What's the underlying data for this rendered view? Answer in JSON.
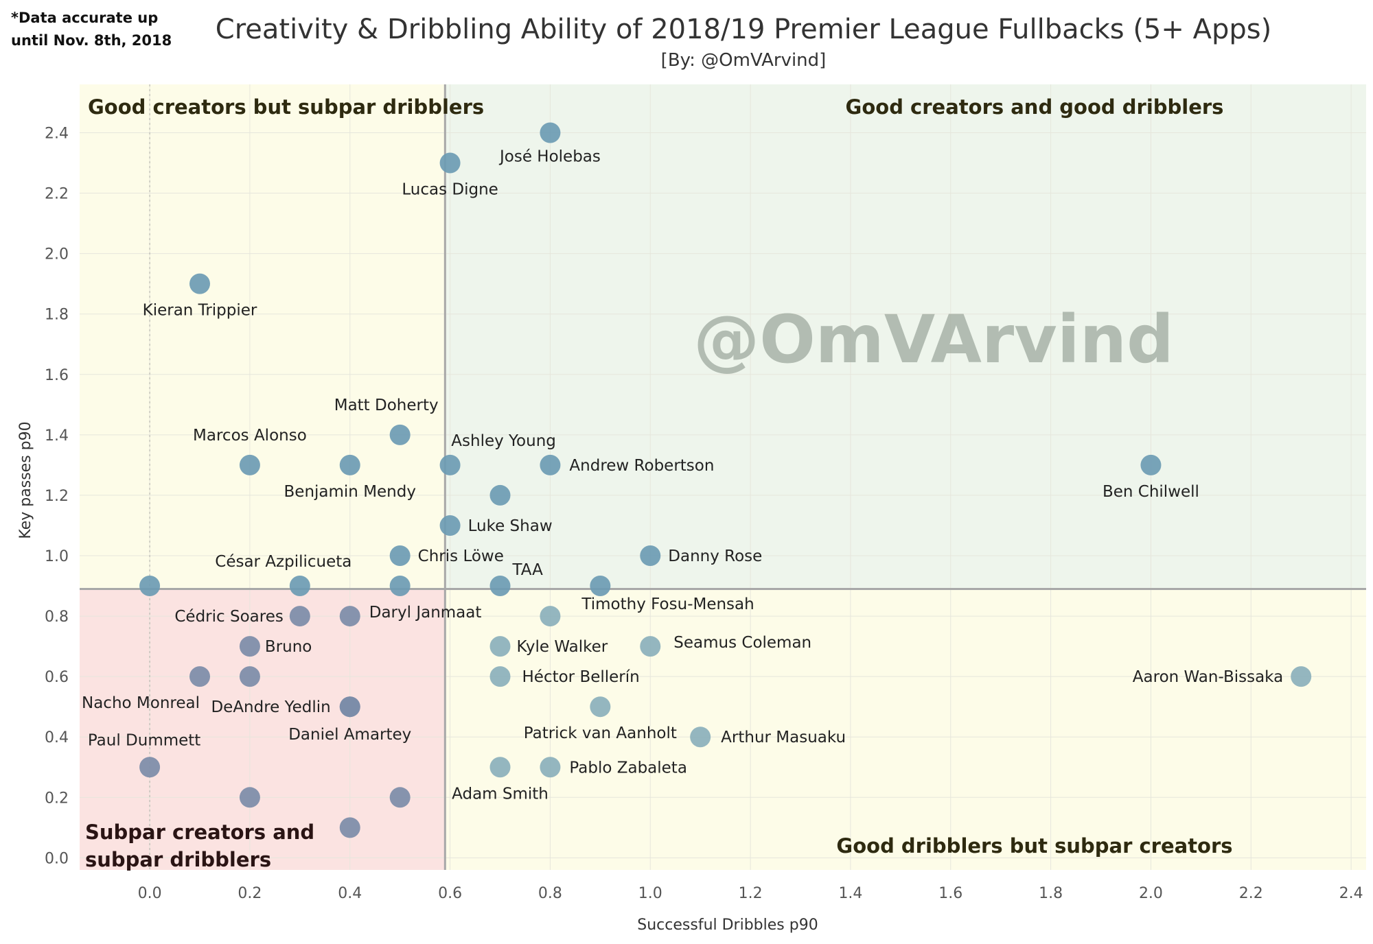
{
  "note": "*Data accurate up\nuntil Nov. 8th, 2018",
  "watermark": "@OmVArvind",
  "chart_data": {
    "type": "scatter",
    "title": "Creativity & Dribbling Ability of 2018/19 Premier League Fullbacks (5+ Apps)",
    "subtitle": "[By: @OmVArvind]",
    "xlabel": "Successful Dribbles p90",
    "ylabel": "Key passes p90",
    "xlim": [
      -0.14,
      2.43
    ],
    "ylim": [
      -0.04,
      2.56
    ],
    "xticks": [
      "0.0",
      "0.2",
      "0.4",
      "0.6",
      "0.8",
      "1.0",
      "1.2",
      "1.4",
      "1.6",
      "1.8",
      "2.0",
      "2.2",
      "2.4"
    ],
    "yticks": [
      "0.0",
      "0.2",
      "0.4",
      "0.6",
      "0.8",
      "1.0",
      "1.2",
      "1.4",
      "1.6",
      "1.8",
      "2.0",
      "2.2",
      "2.4"
    ],
    "grid": true,
    "reference_lines": {
      "x": 0.59,
      "y": 0.89
    },
    "quadrants": {
      "top_left": "Good creators but subpar dribblers",
      "top_right": "Good creators and good dribblers",
      "bottom_left": "Subpar creators and subpar dribblers",
      "bottom_right": "Good dribblers but subpar creators"
    },
    "colors": {
      "top_left_bg": "#fdfce8",
      "top_right_bg": "#eef5ec",
      "bottom_left_bg": "#fbe3e1",
      "bottom_right_bg": "#fdfce8",
      "point_creator": "#6d9bb3",
      "point_dribbler": "#8bb0bb",
      "point_subpar": "#7c8ca8",
      "divider": "#a8a8a8"
    },
    "points": [
      {
        "name": "José Holebas",
        "x": 0.8,
        "y": 2.4
      },
      {
        "name": "Lucas Digne",
        "x": 0.6,
        "y": 2.3
      },
      {
        "name": "Kieran Trippier",
        "x": 0.1,
        "y": 1.9
      },
      {
        "name": "Matt Doherty",
        "x": 0.5,
        "y": 1.4
      },
      {
        "name": "Marcos Alonso",
        "x": 0.2,
        "y": 1.3
      },
      {
        "name": "Benjamin Mendy",
        "x": 0.4,
        "y": 1.3
      },
      {
        "name": "Ashley Young",
        "x": 0.6,
        "y": 1.3
      },
      {
        "name": "Andrew Robertson",
        "x": 0.8,
        "y": 1.3
      },
      {
        "name": "Ben Chilwell",
        "x": 2.0,
        "y": 1.3
      },
      {
        "name": "",
        "x": 0.7,
        "y": 1.2
      },
      {
        "name": "Luke Shaw",
        "x": 0.6,
        "y": 1.1
      },
      {
        "name": "Chris Löwe",
        "x": 0.5,
        "y": 1.0
      },
      {
        "name": "Danny Rose",
        "x": 1.0,
        "y": 1.0
      },
      {
        "name": "",
        "x": 0.0,
        "y": 0.9
      },
      {
        "name": "César Azpilicueta",
        "x": 0.3,
        "y": 0.9
      },
      {
        "name": "",
        "x": 0.5,
        "y": 0.9
      },
      {
        "name": "TAA",
        "x": 0.7,
        "y": 0.9
      },
      {
        "name": "",
        "x": 0.9,
        "y": 0.9
      },
      {
        "name": "Cédric Soares",
        "x": 0.3,
        "y": 0.8
      },
      {
        "name": "Daryl Janmaat",
        "x": 0.4,
        "y": 0.8
      },
      {
        "name": "Timothy Fosu-Mensah",
        "x": 0.8,
        "y": 0.8
      },
      {
        "name": "Bruno",
        "x": 0.2,
        "y": 0.7
      },
      {
        "name": "Kyle Walker",
        "x": 0.7,
        "y": 0.7
      },
      {
        "name": "Seamus Coleman",
        "x": 1.0,
        "y": 0.7
      },
      {
        "name": "Nacho Monreal",
        "x": 0.1,
        "y": 0.6
      },
      {
        "name": "",
        "x": 0.2,
        "y": 0.6
      },
      {
        "name": "Héctor Bellerín",
        "x": 0.7,
        "y": 0.6
      },
      {
        "name": "Aaron Wan-Bissaka",
        "x": 2.3,
        "y": 0.6
      },
      {
        "name": "DeAndre Yedlin",
        "x": 0.4,
        "y": 0.5
      },
      {
        "name": "Daniel Amartey",
        "x": 0.4,
        "y": 0.5
      },
      {
        "name": "Patrick van Aanholt",
        "x": 0.9,
        "y": 0.5
      },
      {
        "name": "Arthur Masuaku",
        "x": 1.1,
        "y": 0.4
      },
      {
        "name": "Paul Dummett",
        "x": 0.0,
        "y": 0.3
      },
      {
        "name": "Adam Smith",
        "x": 0.7,
        "y": 0.3
      },
      {
        "name": "Pablo Zabaleta",
        "x": 0.8,
        "y": 0.3
      },
      {
        "name": "",
        "x": 0.2,
        "y": 0.2
      },
      {
        "name": "",
        "x": 0.5,
        "y": 0.2
      },
      {
        "name": "",
        "x": 0.4,
        "y": 0.1
      }
    ]
  }
}
